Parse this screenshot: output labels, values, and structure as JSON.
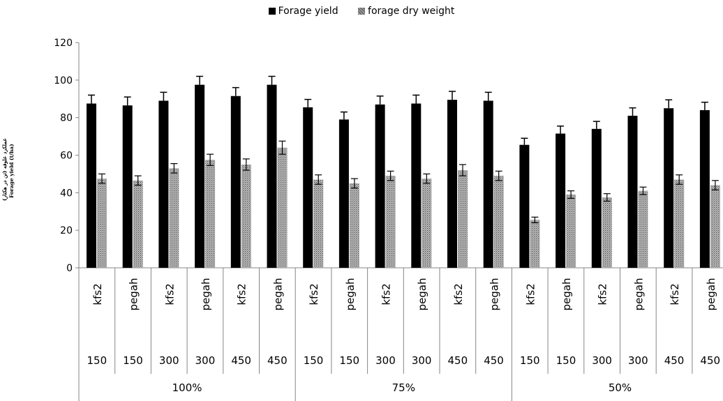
{
  "chart_data": {
    "type": "bar",
    "legend_position": "top",
    "series": [
      {
        "name": "Forage yield",
        "color": "#000000",
        "pattern": "solid",
        "values": [
          87.5,
          86.5,
          89,
          97.5,
          91.5,
          97.5,
          85.5,
          79,
          87,
          87.5,
          89.5,
          89,
          65.5,
          71.5,
          74,
          81,
          85,
          84
        ],
        "errors": [
          4.5,
          4.5,
          4.5,
          4.5,
          4.5,
          4.5,
          4.2,
          4,
          4.5,
          4.5,
          4.5,
          4.5,
          3.5,
          4,
          4,
          4.2,
          4.5,
          4.2
        ]
      },
      {
        "name": "forage dry weight",
        "color": "#9a9a9a",
        "pattern": "hatched",
        "values": [
          47.5,
          46.5,
          53,
          57.5,
          55,
          64,
          47,
          45,
          49,
          47.5,
          52,
          49,
          25.5,
          39,
          37.5,
          41,
          47,
          44
        ],
        "errors": [
          2.5,
          2.5,
          2.5,
          3,
          3,
          3.5,
          2.5,
          2.5,
          2.5,
          2.5,
          3,
          2.5,
          1.5,
          2,
          2,
          2,
          2.5,
          2.5
        ]
      }
    ],
    "category_levels": {
      "cultivar": [
        "kfs2",
        "pegah",
        "kfs2",
        "pegah",
        "kfs2",
        "pegah",
        "kfs2",
        "pegah",
        "kfs2",
        "pegah",
        "kfs2",
        "pegah",
        "kfs2",
        "pegah",
        "kfs2",
        "pegah",
        "kfs2",
        "pegah"
      ],
      "dose": [
        "150",
        "150",
        "300",
        "300",
        "450",
        "450",
        "150",
        "150",
        "300",
        "300",
        "450",
        "450",
        "150",
        "150",
        "300",
        "300",
        "450",
        "450"
      ],
      "groups": [
        "100%",
        "75%",
        "50%"
      ]
    },
    "ylabel_persian": "عملکرد علوفه (تن در هکتار)",
    "ylabel": "Forage yield (t/ha)",
    "ylim": [
      0,
      120
    ],
    "yticks": [
      0,
      20,
      40,
      60,
      80,
      100,
      120
    ],
    "grid": false
  }
}
